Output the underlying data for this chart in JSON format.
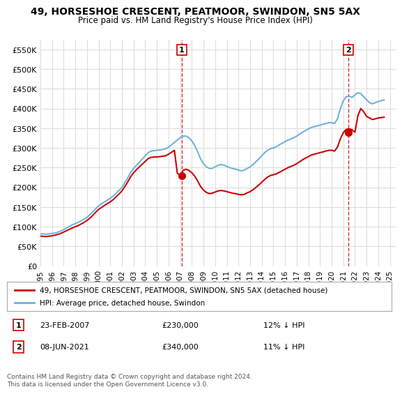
{
  "title": "49, HORSESHOE CRESCENT, PEATMOOR, SWINDON, SN5 5AX",
  "subtitle": "Price paid vs. HM Land Registry's House Price Index (HPI)",
  "ylabel_ticks": [
    "£0",
    "£50K",
    "£100K",
    "£150K",
    "£200K",
    "£250K",
    "£300K",
    "£350K",
    "£400K",
    "£450K",
    "£500K",
    "£550K"
  ],
  "ylim": [
    0,
    575000
  ],
  "xlim_start": 1995.0,
  "xlim_end": 2025.5,
  "hpi_color": "#6fb3d9",
  "price_color": "#cc0000",
  "vline_color": "#cc0000",
  "vline_style": "dashed",
  "transaction1_x": 2007.14,
  "transaction1_y": 230000,
  "transaction1_label": "1",
  "transaction2_x": 2021.44,
  "transaction2_y": 340000,
  "transaction2_label": "2",
  "legend_line1": "49, HORSESHOE CRESCENT, PEATMOOR, SWINDON, SN5 5AX (detached house)",
  "legend_line2": "HPI: Average price, detached house, Swindon",
  "table_row1": [
    "1",
    "23-FEB-2007",
    "£230,000",
    "12% ↓ HPI"
  ],
  "table_row2": [
    "2",
    "08-JUN-2021",
    "£340,000",
    "11% ↓ HPI"
  ],
  "footer": "Contains HM Land Registry data © Crown copyright and database right 2024.\nThis data is licensed under the Open Government Licence v3.0.",
  "bg_color": "#ffffff",
  "grid_color": "#dddddd",
  "hpi_data_x": [
    1995.0,
    1995.25,
    1995.5,
    1995.75,
    1996.0,
    1996.25,
    1996.5,
    1996.75,
    1997.0,
    1997.25,
    1997.5,
    1997.75,
    1998.0,
    1998.25,
    1998.5,
    1998.75,
    1999.0,
    1999.25,
    1999.5,
    1999.75,
    2000.0,
    2000.25,
    2000.5,
    2000.75,
    2001.0,
    2001.25,
    2001.5,
    2001.75,
    2002.0,
    2002.25,
    2002.5,
    2002.75,
    2003.0,
    2003.25,
    2003.5,
    2003.75,
    2004.0,
    2004.25,
    2004.5,
    2004.75,
    2005.0,
    2005.25,
    2005.5,
    2005.75,
    2006.0,
    2006.25,
    2006.5,
    2006.75,
    2007.0,
    2007.25,
    2007.5,
    2007.75,
    2008.0,
    2008.25,
    2008.5,
    2008.75,
    2009.0,
    2009.25,
    2009.5,
    2009.75,
    2010.0,
    2010.25,
    2010.5,
    2010.75,
    2011.0,
    2011.25,
    2011.5,
    2011.75,
    2012.0,
    2012.25,
    2012.5,
    2012.75,
    2013.0,
    2013.25,
    2013.5,
    2013.75,
    2014.0,
    2014.25,
    2014.5,
    2014.75,
    2015.0,
    2015.25,
    2015.5,
    2015.75,
    2016.0,
    2016.25,
    2016.5,
    2016.75,
    2017.0,
    2017.25,
    2017.5,
    2017.75,
    2018.0,
    2018.25,
    2018.5,
    2018.75,
    2019.0,
    2019.25,
    2019.5,
    2019.75,
    2020.0,
    2020.25,
    2020.5,
    2020.75,
    2021.0,
    2021.25,
    2021.5,
    2021.75,
    2022.0,
    2022.25,
    2022.5,
    2022.75,
    2023.0,
    2023.25,
    2023.5,
    2023.75,
    2024.0,
    2024.25,
    2024.5
  ],
  "hpi_data_y": [
    82000,
    81500,
    81000,
    82000,
    83000,
    84000,
    86000,
    89000,
    93000,
    97000,
    101000,
    105000,
    108000,
    111000,
    115000,
    119000,
    124000,
    131000,
    138000,
    146000,
    153000,
    158000,
    163000,
    168000,
    172000,
    178000,
    185000,
    192000,
    200000,
    212000,
    224000,
    238000,
    248000,
    256000,
    264000,
    272000,
    280000,
    288000,
    292000,
    293000,
    294000,
    295000,
    296000,
    298000,
    302000,
    308000,
    314000,
    320000,
    326000,
    330000,
    330000,
    326000,
    318000,
    306000,
    290000,
    272000,
    260000,
    252000,
    248000,
    248000,
    252000,
    256000,
    258000,
    256000,
    253000,
    250000,
    248000,
    246000,
    244000,
    242000,
    244000,
    248000,
    252000,
    258000,
    265000,
    272000,
    280000,
    288000,
    294000,
    298000,
    300000,
    303000,
    308000,
    312000,
    316000,
    320000,
    323000,
    326000,
    330000,
    335000,
    340000,
    344000,
    348000,
    352000,
    354000,
    356000,
    358000,
    360000,
    362000,
    364000,
    364000,
    362000,
    374000,
    400000,
    420000,
    430000,
    432000,
    428000,
    435000,
    440000,
    438000,
    430000,
    422000,
    415000,
    412000,
    415000,
    418000,
    420000,
    422000
  ],
  "price_data_x": [
    1995.0,
    1995.25,
    1995.5,
    1995.75,
    1996.0,
    1996.25,
    1996.5,
    1996.75,
    1997.0,
    1997.25,
    1997.5,
    1997.75,
    1998.0,
    1998.25,
    1998.5,
    1998.75,
    1999.0,
    1999.25,
    1999.5,
    1999.75,
    2000.0,
    2000.25,
    2000.5,
    2000.75,
    2001.0,
    2001.25,
    2001.5,
    2001.75,
    2002.0,
    2002.25,
    2002.5,
    2002.75,
    2003.0,
    2003.25,
    2003.5,
    2003.75,
    2004.0,
    2004.25,
    2004.5,
    2004.75,
    2005.0,
    2005.25,
    2005.5,
    2005.75,
    2006.0,
    2006.25,
    2006.5,
    2006.75,
    2007.0,
    2007.25,
    2007.5,
    2007.75,
    2008.0,
    2008.25,
    2008.5,
    2008.75,
    2009.0,
    2009.25,
    2009.5,
    2009.75,
    2010.0,
    2010.25,
    2010.5,
    2010.75,
    2011.0,
    2011.25,
    2011.5,
    2011.75,
    2012.0,
    2012.25,
    2012.5,
    2012.75,
    2013.0,
    2013.25,
    2013.5,
    2013.75,
    2014.0,
    2014.25,
    2014.5,
    2014.75,
    2015.0,
    2015.25,
    2015.5,
    2015.75,
    2016.0,
    2016.25,
    2016.5,
    2016.75,
    2017.0,
    2017.25,
    2017.5,
    2017.75,
    2018.0,
    2018.25,
    2018.5,
    2018.75,
    2019.0,
    2019.25,
    2019.5,
    2019.75,
    2020.0,
    2020.25,
    2020.5,
    2020.75,
    2021.0,
    2021.25,
    2021.5,
    2021.75,
    2022.0,
    2022.25,
    2022.5,
    2022.75,
    2023.0,
    2023.25,
    2023.5,
    2023.75,
    2024.0,
    2024.25,
    2024.5
  ],
  "price_data_y": [
    76000,
    75500,
    75000,
    76000,
    77000,
    78500,
    80500,
    83000,
    86500,
    90000,
    93500,
    97000,
    100000,
    103000,
    107000,
    111000,
    116000,
    122000,
    129000,
    137000,
    144000,
    149000,
    154000,
    159000,
    163000,
    169000,
    176000,
    183000,
    191000,
    202000,
    214000,
    227000,
    237000,
    245000,
    252000,
    259000,
    266000,
    273000,
    276000,
    277000,
    277000,
    278000,
    279000,
    280000,
    284000,
    289000,
    294000,
    236000,
    230000,
    243000,
    246000,
    243000,
    237000,
    228000,
    216000,
    202000,
    193000,
    187000,
    184000,
    185000,
    188000,
    191000,
    192000,
    191000,
    189000,
    187000,
    185000,
    184000,
    182000,
    181000,
    182000,
    186000,
    189000,
    194000,
    200000,
    206000,
    213000,
    220000,
    226000,
    230000,
    232000,
    234000,
    238000,
    242000,
    246000,
    250000,
    253000,
    256000,
    260000,
    265000,
    270000,
    274000,
    278000,
    282000,
    284000,
    286000,
    288000,
    290000,
    292000,
    294000,
    294000,
    292000,
    302000,
    323000,
    339000,
    347000,
    349000,
    346000,
    340000,
    382000,
    400000,
    392000,
    380000,
    376000,
    372000,
    374000,
    376000,
    377000,
    378000
  ]
}
